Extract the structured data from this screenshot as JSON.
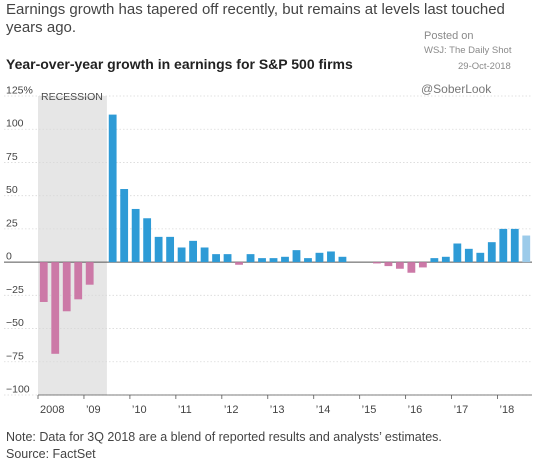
{
  "header": {
    "headline": "Earnings growth has tapered off recently, but remains at levels last touched years ago.",
    "posted_on": "Posted on",
    "source_tag": "WSJ: The Daily Shot",
    "date": "29-Oct-2018",
    "handle": "@SoberLook"
  },
  "footer": {
    "note": "Note: Data for 3Q 2018 are a blend of reported results and analysts’ estimates.",
    "source": "Source: FactSet"
  },
  "chart_data": {
    "type": "bar",
    "title": "Year-over-year growth in earnings for S&P 500 firms",
    "y_unit": "%",
    "ylim": [
      -100,
      125
    ],
    "y_ticks": [
      -100,
      -75,
      -50,
      -25,
      0,
      25,
      50,
      75,
      100,
      125
    ],
    "y_tick_labels": [
      "−100",
      "−75",
      "−50",
      "−25",
      "0",
      "25",
      "50",
      "75",
      "100",
      "125%"
    ],
    "x_tick_labels": [
      "2008",
      "’09",
      "’10",
      "’11",
      "’12",
      "’13",
      "’14",
      "’15",
      "’16",
      "’17",
      "’18"
    ],
    "recession_label": "RECESSION",
    "recession_span": [
      "2008 Q1",
      "2009 Q2"
    ],
    "grid": true,
    "colors": {
      "positive": "#2e9bd6",
      "negative": "#cc79a7",
      "estimate": "#9ccbea",
      "recession": "#e6e6e6",
      "grid": "#d9d9d9"
    },
    "categories": [
      "2008 Q1",
      "2008 Q2",
      "2008 Q3",
      "2008 Q4",
      "2009 Q1",
      "2009 Q2",
      "2009 Q3",
      "2009 Q4",
      "2010 Q1",
      "2010 Q2",
      "2010 Q3",
      "2010 Q4",
      "2011 Q1",
      "2011 Q2",
      "2011 Q3",
      "2011 Q4",
      "2012 Q1",
      "2012 Q2",
      "2012 Q3",
      "2012 Q4",
      "2013 Q1",
      "2013 Q2",
      "2013 Q3",
      "2013 Q4",
      "2014 Q1",
      "2014 Q2",
      "2014 Q3",
      "2014 Q4",
      "2015 Q1",
      "2015 Q2",
      "2015 Q3",
      "2015 Q4",
      "2016 Q1",
      "2016 Q2",
      "2016 Q3",
      "2016 Q4",
      "2017 Q1",
      "2017 Q2",
      "2017 Q3",
      "2017 Q4",
      "2018 Q1",
      "2018 Q2",
      "2018 Q3"
    ],
    "values": [
      -30,
      -69,
      -37,
      -28,
      -17,
      0,
      111,
      55,
      40,
      33,
      19,
      19,
      11,
      16,
      11,
      6,
      6,
      -2,
      6,
      3,
      3,
      4,
      9,
      3,
      7,
      8,
      4,
      0,
      0,
      -1,
      -3,
      -5,
      -8,
      -4,
      3,
      4,
      14,
      10,
      7,
      15,
      25,
      25,
      20
    ],
    "estimate_categories": [
      "2018 Q3"
    ]
  }
}
